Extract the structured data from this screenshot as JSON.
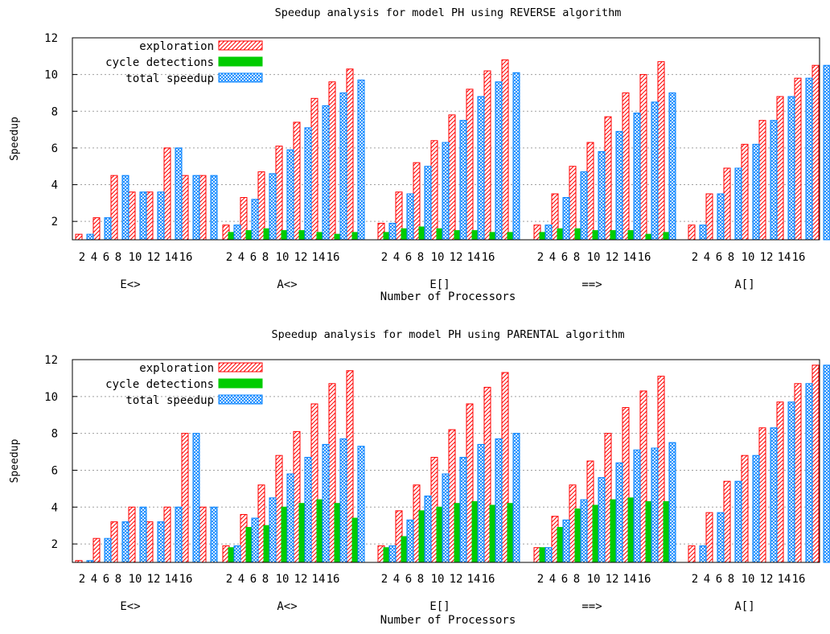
{
  "chart_data": [
    {
      "type": "bar",
      "title": "Speedup analysis for model PH using REVERSE algorithm",
      "xlabel": "Number of Processors",
      "ylabel": "Speedup",
      "ylim": [
        1,
        12
      ],
      "yticks": [
        2,
        4,
        6,
        8,
        10,
        12
      ],
      "grid": true,
      "legend": "top-left",
      "tick_labels": [
        "2",
        "4",
        "6",
        "8",
        "10",
        "12",
        "14",
        "16"
      ],
      "groups": [
        "E<>",
        "A<>",
        "E[]",
        "==>",
        "A[]"
      ],
      "series": [
        {
          "name": "exploration",
          "color": "#ff0000",
          "pattern": "hatch",
          "values": [
            [
              1.3,
              2.2,
              4.5,
              3.6,
              3.6,
              6.0,
              4.5,
              4.5
            ],
            [
              1.8,
              3.3,
              4.7,
              6.1,
              7.4,
              8.7,
              9.6,
              10.3
            ],
            [
              1.9,
              3.6,
              5.2,
              6.4,
              7.8,
              9.2,
              10.2,
              10.8
            ],
            [
              1.8,
              3.5,
              5.0,
              6.3,
              7.7,
              9.0,
              10.0,
              10.7
            ],
            [
              1.8,
              3.5,
              4.9,
              6.2,
              7.5,
              8.8,
              9.8,
              10.5
            ]
          ]
        },
        {
          "name": "cycle detections",
          "color": "#00cc00",
          "pattern": "solid",
          "values": [
            [
              null,
              null,
              null,
              null,
              null,
              null,
              null,
              null
            ],
            [
              1.4,
              1.5,
              1.6,
              1.5,
              1.5,
              1.4,
              1.3,
              1.4
            ],
            [
              1.4,
              1.6,
              1.7,
              1.6,
              1.5,
              1.5,
              1.4,
              1.4
            ],
            [
              1.4,
              1.6,
              1.6,
              1.5,
              1.5,
              1.5,
              1.3,
              1.4
            ],
            [
              null,
              null,
              null,
              null,
              null,
              null,
              null,
              null
            ]
          ]
        },
        {
          "name": "total speedup",
          "color": "#0080ff",
          "pattern": "crosshatch",
          "values": [
            [
              1.3,
              2.2,
              4.5,
              3.6,
              3.6,
              6.0,
              4.5,
              4.5
            ],
            [
              1.8,
              3.2,
              4.6,
              5.9,
              7.1,
              8.3,
              9.0,
              9.7
            ],
            [
              1.9,
              3.5,
              5.0,
              6.3,
              7.5,
              8.8,
              9.6,
              10.1
            ],
            [
              1.8,
              3.3,
              4.7,
              5.8,
              6.9,
              7.9,
              8.5,
              9.0
            ],
            [
              1.8,
              3.5,
              4.9,
              6.2,
              7.5,
              8.8,
              9.8,
              10.5
            ]
          ]
        }
      ]
    },
    {
      "type": "bar",
      "title": "Speedup analysis for model PH using PARENTAL algorithm",
      "xlabel": "Number of Processors",
      "ylabel": "Speedup",
      "ylim": [
        1,
        12
      ],
      "yticks": [
        2,
        4,
        6,
        8,
        10,
        12
      ],
      "grid": true,
      "legend": "top-left",
      "tick_labels": [
        "2",
        "4",
        "6",
        "8",
        "10",
        "12",
        "14",
        "16"
      ],
      "groups": [
        "E<>",
        "A<>",
        "E[]",
        "==>",
        "A[]"
      ],
      "series": [
        {
          "name": "exploration",
          "color": "#ff0000",
          "pattern": "hatch",
          "values": [
            [
              1.1,
              2.3,
              3.2,
              4.0,
              3.2,
              4.0,
              8.0,
              4.0
            ],
            [
              1.9,
              3.6,
              5.2,
              6.8,
              8.1,
              9.6,
              10.7,
              11.4
            ],
            [
              1.9,
              3.8,
              5.2,
              6.7,
              8.2,
              9.6,
              10.5,
              11.3
            ],
            [
              1.8,
              3.5,
              5.2,
              6.5,
              8.0,
              9.4,
              10.3,
              11.1
            ],
            [
              1.9,
              3.7,
              5.4,
              6.8,
              8.3,
              9.7,
              10.7,
              11.7
            ]
          ]
        },
        {
          "name": "cycle detections",
          "color": "#00cc00",
          "pattern": "solid",
          "values": [
            [
              null,
              null,
              null,
              null,
              null,
              null,
              null,
              null
            ],
            [
              1.8,
              2.9,
              3.0,
              4.0,
              4.2,
              4.4,
              4.2,
              3.4
            ],
            [
              1.8,
              2.4,
              3.8,
              4.0,
              4.2,
              4.3,
              4.1,
              4.2
            ],
            [
              1.8,
              2.9,
              3.9,
              4.1,
              4.4,
              4.5,
              4.3,
              4.3
            ],
            [
              null,
              null,
              null,
              null,
              null,
              null,
              null,
              null
            ]
          ]
        },
        {
          "name": "total speedup",
          "color": "#0080ff",
          "pattern": "crosshatch",
          "values": [
            [
              1.1,
              2.3,
              3.2,
              4.0,
              3.2,
              4.0,
              8.0,
              4.0
            ],
            [
              1.9,
              3.4,
              4.5,
              5.8,
              6.7,
              7.4,
              7.7,
              7.3
            ],
            [
              1.9,
              3.3,
              4.6,
              5.8,
              6.7,
              7.4,
              7.7,
              8.0
            ],
            [
              1.8,
              3.3,
              4.4,
              5.6,
              6.4,
              7.1,
              7.2,
              7.5
            ],
            [
              1.9,
              3.7,
              5.4,
              6.8,
              8.3,
              9.7,
              10.7,
              11.7
            ]
          ]
        }
      ]
    }
  ]
}
